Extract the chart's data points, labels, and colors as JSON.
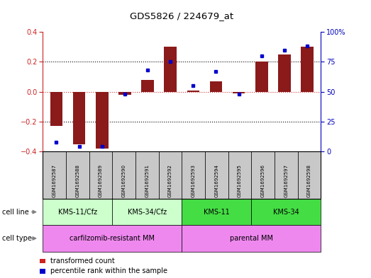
{
  "title": "GDS5826 / 224679_at",
  "samples": [
    "GSM1692587",
    "GSM1692588",
    "GSM1692589",
    "GSM1692590",
    "GSM1692591",
    "GSM1692592",
    "GSM1692593",
    "GSM1692594",
    "GSM1692595",
    "GSM1692596",
    "GSM1692597",
    "GSM1692598"
  ],
  "transformed_count": [
    -0.23,
    -0.35,
    -0.38,
    -0.02,
    0.08,
    0.3,
    0.01,
    0.07,
    -0.01,
    0.2,
    0.25,
    0.3
  ],
  "percentile_rank": [
    8,
    4,
    4,
    48,
    68,
    75,
    55,
    67,
    48,
    80,
    85,
    88
  ],
  "ylim_left": [
    -0.4,
    0.4
  ],
  "ylim_right": [
    0,
    100
  ],
  "yticks_left": [
    -0.4,
    -0.2,
    0.0,
    0.2,
    0.4
  ],
  "yticks_right": [
    0,
    25,
    50,
    75,
    100
  ],
  "bar_color": "#8B1A1A",
  "dot_color": "#0000CC",
  "cell_line_groups": [
    {
      "label": "KMS-11/Cfz",
      "start": 0,
      "end": 3,
      "color": "#CCFFCC"
    },
    {
      "label": "KMS-34/Cfz",
      "start": 3,
      "end": 6,
      "color": "#CCFFCC"
    },
    {
      "label": "KMS-11",
      "start": 6,
      "end": 9,
      "color": "#44DD44"
    },
    {
      "label": "KMS-34",
      "start": 9,
      "end": 12,
      "color": "#44DD44"
    }
  ],
  "cell_type_groups": [
    {
      "label": "carfilzomib-resistant MM",
      "start": 0,
      "end": 6,
      "color": "#EE88EE"
    },
    {
      "label": "parental MM",
      "start": 6,
      "end": 12,
      "color": "#EE88EE"
    }
  ],
  "legend_items": [
    {
      "label": "transformed count",
      "color": "#CC2222"
    },
    {
      "label": "percentile rank within the sample",
      "color": "#0000CC"
    }
  ],
  "zero_line_color": "#CC3333",
  "dotted_line_color": "black",
  "sample_box_color": "#C8C8C8",
  "left_axis_color": "#CC2222",
  "right_axis_color": "#0000BB"
}
